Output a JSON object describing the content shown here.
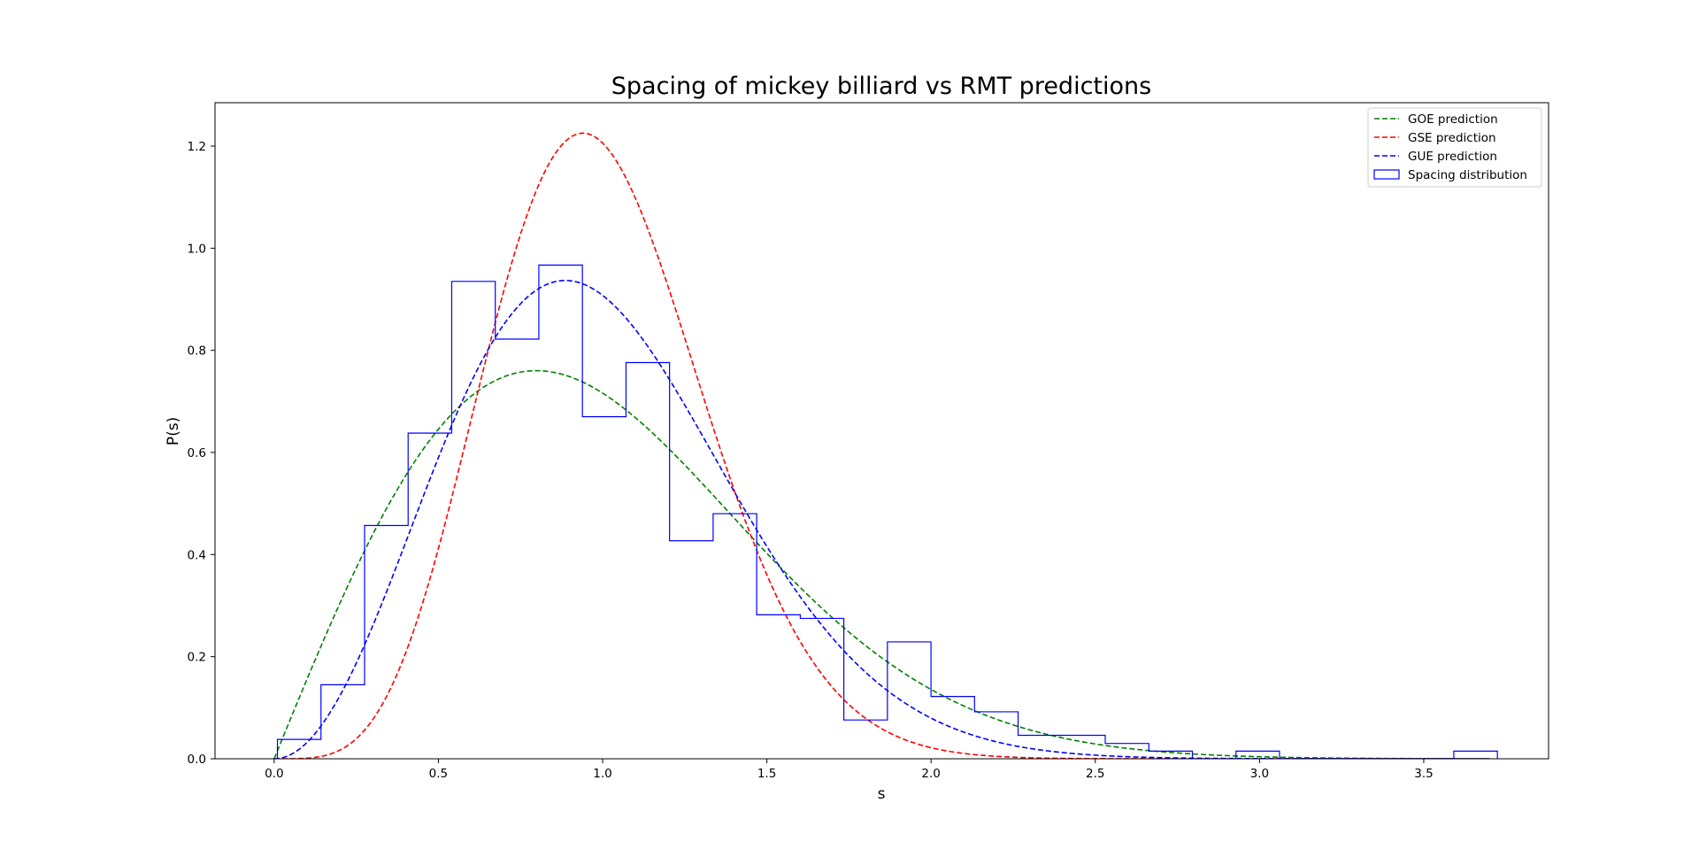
{
  "chart_data": {
    "type": "line",
    "title": "Spacing of mickey billiard vs RMT predictions",
    "xlabel": "s",
    "ylabel": "P(s)",
    "xlim": [
      -0.18,
      3.88
    ],
    "ylim": [
      0,
      1.285
    ],
    "xticks": [
      "0.0",
      "0.5",
      "1.0",
      "1.5",
      "2.0",
      "2.5",
      "3.0",
      "3.5"
    ],
    "yticks": [
      "0.0",
      "0.2",
      "0.4",
      "0.6",
      "0.8",
      "1.0",
      "1.2"
    ],
    "grid": false,
    "legend_position": "top-right",
    "series": [
      {
        "name": "GOE prediction",
        "style": "dashed",
        "color": "#008000",
        "formula": "(pi/2) s exp(-pi s^2 / 4)",
        "x_range": [
          0.0,
          3.7
        ]
      },
      {
        "name": "GSE prediction",
        "style": "dashed",
        "color": "#ff0000",
        "formula": "(2^18 / (3^6 pi^3)) s^4 exp(-64 s^2 / (9 pi))",
        "x_range": [
          0.0,
          3.7
        ]
      },
      {
        "name": "GUE prediction",
        "style": "dashed",
        "color": "#0000ff",
        "formula": "(32 / pi^2) s^2 exp(-4 s^2 / pi)",
        "x_range": [
          0.0,
          3.7
        ]
      }
    ],
    "histogram": {
      "name": "Spacing distribution",
      "type": "step",
      "color": "#0000ff",
      "bin_edges": [
        0.01,
        0.1426,
        0.2753,
        0.4079,
        0.5406,
        0.6732,
        0.8059,
        0.9385,
        1.0712,
        1.2038,
        1.3365,
        1.4691,
        1.6018,
        1.7344,
        1.8671,
        1.9997,
        2.1324,
        2.265,
        2.3977,
        2.5303,
        2.663,
        2.7956,
        2.9283,
        3.0609,
        3.1936,
        3.3262,
        3.4589,
        3.5915,
        3.7242
      ],
      "values": [
        0.038,
        0.145,
        0.457,
        0.638,
        0.935,
        0.822,
        0.967,
        0.67,
        0.776,
        0.427,
        0.48,
        0.282,
        0.275,
        0.076,
        0.229,
        0.122,
        0.092,
        0.046,
        0.046,
        0.03,
        0.015,
        0.0,
        0.015,
        0.0,
        0.0,
        0.0,
        0.0,
        0.015
      ]
    }
  }
}
